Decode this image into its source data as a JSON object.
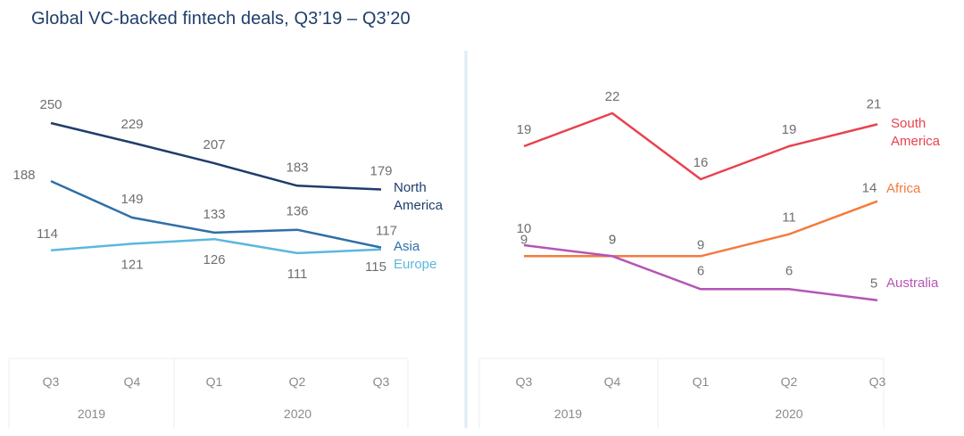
{
  "title": "Global VC-backed fintech deals, Q3’19 – Q3’20",
  "chart_data": [
    {
      "type": "line",
      "title": "Global VC-backed fintech deals, Q3’19 – Q3’20",
      "categories": [
        "Q3",
        "Q4",
        "Q1",
        "Q2",
        "Q3"
      ],
      "category_groups": [
        {
          "label": "2019",
          "span": 2
        },
        {
          "label": "2020",
          "span": 3
        }
      ],
      "series": [
        {
          "name": "North America",
          "legend_lines": [
            "North",
            "America"
          ],
          "color": "#1f3d6b",
          "values": [
            250,
            229,
            207,
            183,
            179
          ]
        },
        {
          "name": "Asia",
          "legend_lines": [
            "Asia"
          ],
          "color": "#2e6fa8",
          "values": [
            188,
            149,
            133,
            136,
            117
          ]
        },
        {
          "name": "Europe",
          "legend_lines": [
            "Europe"
          ],
          "color": "#5bb8dd",
          "values": [
            114,
            121,
            126,
            111,
            115
          ]
        }
      ],
      "ylim": [
        0,
        250
      ],
      "xlabel": "",
      "ylabel": "",
      "grid": false,
      "legend": "right (inline labels at line ends)"
    },
    {
      "type": "line",
      "categories": [
        "Q3",
        "Q4",
        "Q1",
        "Q2",
        "Q3"
      ],
      "category_groups": [
        {
          "label": "2019",
          "span": 2
        },
        {
          "label": "2020",
          "span": 3
        }
      ],
      "series": [
        {
          "name": "South America",
          "legend_lines": [
            "South",
            "America"
          ],
          "color": "#e8424f",
          "values": [
            19,
            22,
            16,
            19,
            21
          ]
        },
        {
          "name": "Africa",
          "legend_lines": [
            "Africa"
          ],
          "color": "#f47b3e",
          "values": [
            9,
            9,
            9,
            11,
            14
          ]
        },
        {
          "name": "Australia",
          "legend_lines": [
            "Australia"
          ],
          "color": "#b455b5",
          "values": [
            10,
            9,
            6,
            6,
            5
          ]
        }
      ],
      "ylim": [
        0,
        22
      ],
      "xlabel": "",
      "ylabel": "",
      "grid": false,
      "legend": "right (inline labels at line ends)"
    }
  ]
}
